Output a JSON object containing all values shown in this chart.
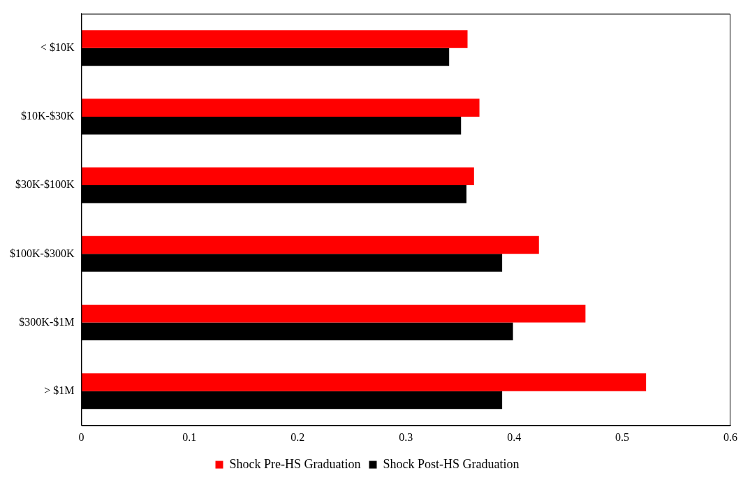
{
  "chart_data": {
    "type": "bar",
    "orientation": "horizontal",
    "categories": [
      "< $10K",
      "$10K-$30K",
      "$30K-$100K",
      "$100K-$300K",
      "$300K-$1M",
      "> $1M"
    ],
    "series": [
      {
        "name": "Shock Pre-HS Graduation",
        "color": "#ff0000",
        "values": [
          0.357,
          0.368,
          0.363,
          0.423,
          0.466,
          0.522
        ]
      },
      {
        "name": "Shock Post-HS Graduation",
        "color": "#000000",
        "values": [
          0.34,
          0.351,
          0.356,
          0.389,
          0.399,
          0.389
        ]
      }
    ],
    "xlim": [
      0,
      0.6
    ],
    "xticks": [
      0,
      0.1,
      0.2,
      0.3,
      0.4,
      0.5,
      0.6
    ],
    "grid": false,
    "legend": "bottom"
  }
}
